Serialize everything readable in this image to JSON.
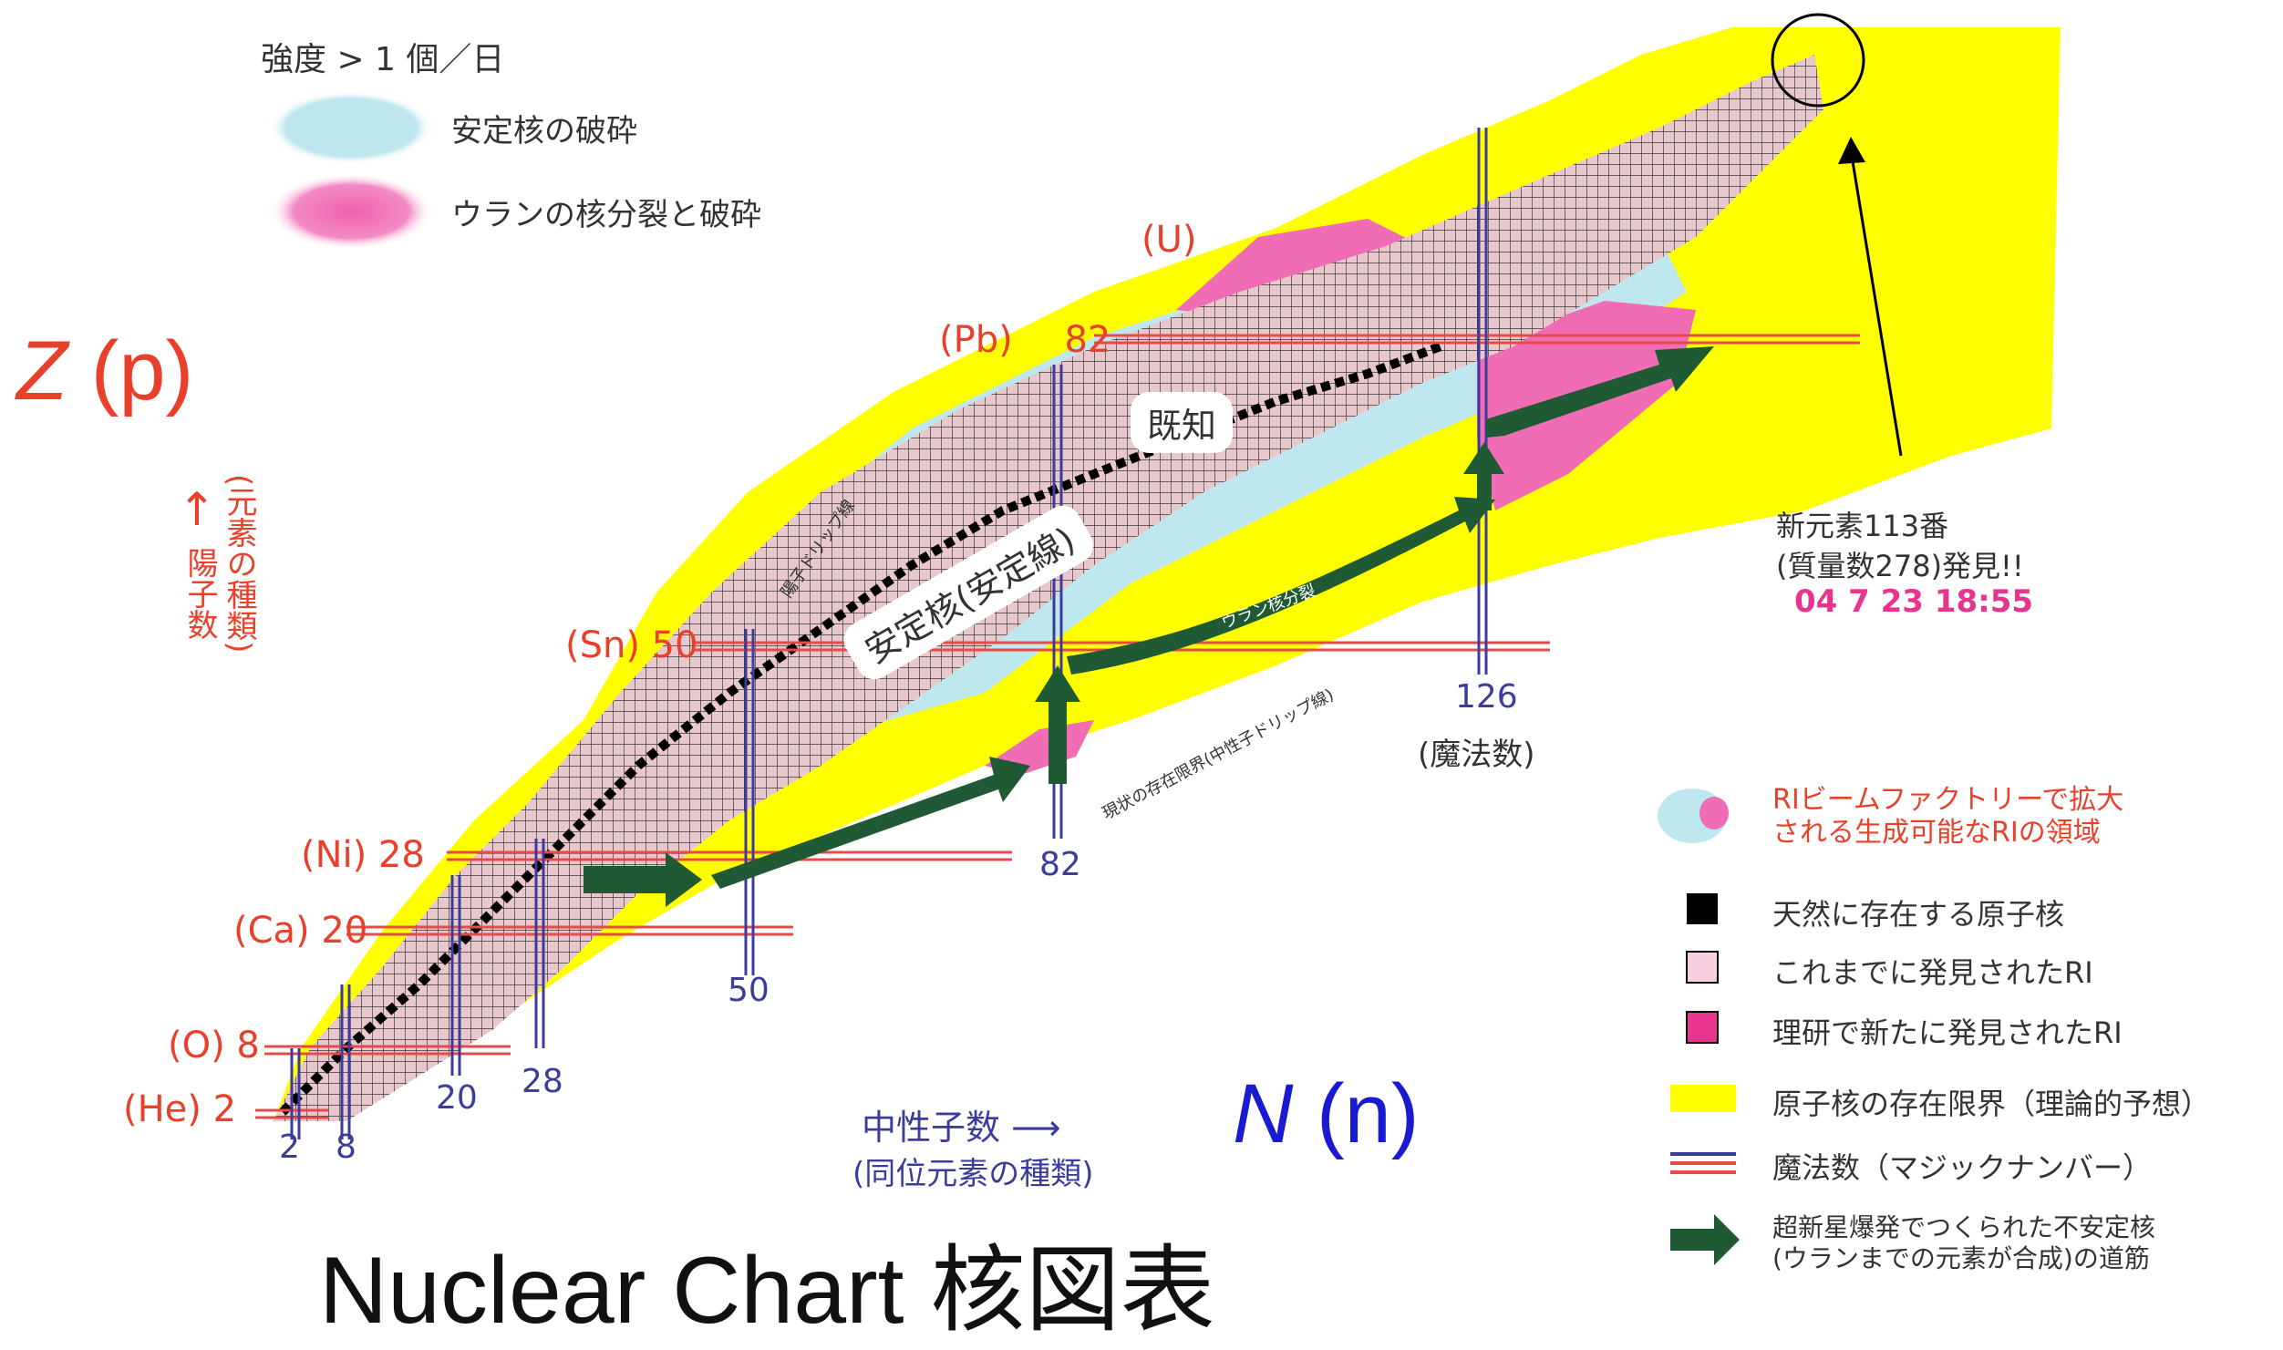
{
  "legend_top": {
    "title": "強度 > 1 個／日",
    "stable": "安定核の破砕",
    "uranium": "ウランの核分裂と破砕"
  },
  "axes": {
    "z_label_var": "Z",
    "z_label_paren": "(p)",
    "z_vertical_1": "陽子数",
    "z_vertical_2": "(元素の種類)",
    "n_label_var": "N",
    "n_label_paren": "(n)",
    "n_caption_1": "中性子数",
    "n_caption_2": "(同位元素の種類)"
  },
  "elements": [
    {
      "name": "(He)",
      "z": "2"
    },
    {
      "name": "(O)",
      "z": "8"
    },
    {
      "name": "(Ca)",
      "z": "20"
    },
    {
      "name": "(Ni)",
      "z": "28"
    },
    {
      "name": "(Sn)",
      "z": "50"
    },
    {
      "name": "(Pb)",
      "z": "82"
    },
    {
      "name": "(U)",
      "z": ""
    }
  ],
  "n_magic": [
    "2",
    "8",
    "20",
    "28",
    "50",
    "82",
    "126"
  ],
  "n_magic_note": "(魔法数)",
  "region_labels": {
    "known": "既知",
    "stable_line": "安定核(安定線)",
    "proton_drip": "陽子ドリップ線",
    "uranium_fission": "ウラン核分裂",
    "neutron_drip": "現状の存在限界(中性子ドリップ線)"
  },
  "discovery": {
    "line1": "新元素113番",
    "line2": "(質量数278)発見!!",
    "time": "04 7 23 18:55"
  },
  "legend_right": [
    {
      "icon": "ri-region",
      "text": "RIビームファクトリーで拡大\nされる生成可能なRIの領域"
    },
    {
      "icon": "black-square",
      "text": "天然に存在する原子核"
    },
    {
      "icon": "light-pink-square",
      "text": "これまでに発見されたRI"
    },
    {
      "icon": "magenta-square",
      "text": "理研で新たに発見されたRI"
    },
    {
      "icon": "yellow-bar",
      "text": "原子核の存在限界（理論的予想）"
    },
    {
      "icon": "magic-lines",
      "text": "魔法数（マジックナンバー）"
    },
    {
      "icon": "green-arrow",
      "text": "超新星爆発でつくられた不安定核\n(ウランまでの元素が合成)の道筋"
    }
  ],
  "footer_title": "Nuclear Chart 核図表",
  "colors": {
    "yellow": "#ffff00",
    "light_blue": "#bfe7ee",
    "pink": "#f060b0",
    "grid_fill": "#e8c8cc",
    "grid_line": "#3a3a3a",
    "green": "#1f5a34",
    "magic_red": "#e84a4a",
    "magic_blue": "#3c3c9c",
    "label_red": "#e8402b"
  }
}
